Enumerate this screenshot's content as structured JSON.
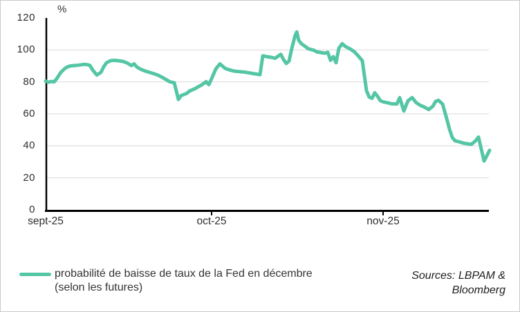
{
  "chart": {
    "line_color": "#55C6A5",
    "grid_color": "#D9D9D9",
    "axis_color": "#000000",
    "text_color": "#2E2E2E"
  },
  "chart_data": {
    "type": "line",
    "title": "",
    "xlabel": "",
    "ylabel": "%",
    "ylim": [
      0,
      120
    ],
    "yticks": [
      0,
      20,
      40,
      60,
      80,
      100,
      120
    ],
    "gridline_values": [
      20,
      40,
      60,
      80,
      100
    ],
    "grid": "horizontal-only",
    "legend_position": "bottom-left",
    "x_axis": {
      "unit": "days since start of sept-25",
      "range": [
        0,
        80.25
      ],
      "ticks": [
        {
          "label": "sept-25",
          "day": 0
        },
        {
          "label": "oct-25",
          "day": 30
        },
        {
          "label": "nov-25",
          "day": 61
        }
      ]
    },
    "series": [
      {
        "name": "probabilité de baisse de taux de la Fed en décembre (selon les futures)",
        "color": "#55C6A5",
        "points": [
          [
            0,
            80.5
          ],
          [
            0.5,
            79.8
          ],
          [
            1,
            80.3
          ],
          [
            1.5,
            80
          ],
          [
            2,
            82
          ],
          [
            2.75,
            86
          ],
          [
            3.5,
            88.5
          ],
          [
            4,
            89.5
          ],
          [
            4.5,
            90
          ],
          [
            5.5,
            90.3
          ],
          [
            6,
            90.5
          ],
          [
            7,
            91
          ],
          [
            7.5,
            90.8
          ],
          [
            8,
            90.3
          ],
          [
            8.5,
            87.5
          ],
          [
            9.25,
            84.3
          ],
          [
            10,
            86
          ],
          [
            10.5,
            89.5
          ],
          [
            11,
            92
          ],
          [
            11.75,
            93.3
          ],
          [
            12.5,
            93.5
          ],
          [
            13.25,
            93.2
          ],
          [
            14,
            92.8
          ],
          [
            14.75,
            91.8
          ],
          [
            15.5,
            90.2
          ],
          [
            16,
            91.3
          ],
          [
            16.5,
            89.3
          ],
          [
            17.25,
            87.8
          ],
          [
            18,
            86.8
          ],
          [
            18.75,
            86
          ],
          [
            19.5,
            85.2
          ],
          [
            20.25,
            84.3
          ],
          [
            21,
            83
          ],
          [
            21.75,
            81.5
          ],
          [
            22.5,
            80
          ],
          [
            23.25,
            79.5
          ],
          [
            24,
            69
          ],
          [
            24.5,
            71.5
          ],
          [
            25.5,
            72.8
          ],
          [
            26,
            74.3
          ],
          [
            27,
            75.8
          ],
          [
            27.5,
            76.8
          ],
          [
            28.25,
            78.2
          ],
          [
            29,
            80.2
          ],
          [
            29.5,
            78.3
          ],
          [
            30,
            82
          ],
          [
            30.75,
            88
          ],
          [
            31.5,
            91.3
          ],
          [
            32,
            89.8
          ],
          [
            32.5,
            88.3
          ],
          [
            33.5,
            87.3
          ],
          [
            34,
            86.8
          ],
          [
            35,
            86.4
          ],
          [
            36,
            86.1
          ],
          [
            36.75,
            85.7
          ],
          [
            37.5,
            85.2
          ],
          [
            38.25,
            84.8
          ],
          [
            38.75,
            84.5
          ],
          [
            39.25,
            96.3
          ],
          [
            40,
            95.8
          ],
          [
            40.75,
            95.4
          ],
          [
            41.5,
            94.8
          ],
          [
            42.5,
            97.3
          ],
          [
            43,
            94
          ],
          [
            43.5,
            91.5
          ],
          [
            44,
            93
          ],
          [
            44.5,
            101
          ],
          [
            45.1,
            109
          ],
          [
            45.4,
            111.3
          ],
          [
            45.75,
            106
          ],
          [
            46.25,
            103.8
          ],
          [
            47,
            102
          ],
          [
            47.5,
            100.7
          ],
          [
            48.5,
            99.8
          ],
          [
            49,
            98.8
          ],
          [
            50,
            98.2
          ],
          [
            50.5,
            98
          ],
          [
            51,
            98.5
          ],
          [
            51.5,
            93.5
          ],
          [
            52,
            95.8
          ],
          [
            52.5,
            92
          ],
          [
            53,
            101
          ],
          [
            53.6,
            103.9
          ],
          [
            54.25,
            102
          ],
          [
            55,
            100.7
          ],
          [
            55.75,
            99
          ],
          [
            56.5,
            96.3
          ],
          [
            57.25,
            93.2
          ],
          [
            58,
            74.5
          ],
          [
            58.5,
            70.5
          ],
          [
            59,
            69.7
          ],
          [
            59.5,
            73.2
          ],
          [
            60,
            71
          ],
          [
            60.5,
            68.3
          ],
          [
            61,
            67.5
          ],
          [
            62,
            66.8
          ],
          [
            62.5,
            66.3
          ],
          [
            63.5,
            66.2
          ],
          [
            64,
            70.2
          ],
          [
            64.75,
            61.8
          ],
          [
            65.5,
            68.2
          ],
          [
            66.25,
            70.2
          ],
          [
            67,
            67
          ],
          [
            67.75,
            65.3
          ],
          [
            68.5,
            64.2
          ],
          [
            69.25,
            62.7
          ],
          [
            70,
            64.8
          ],
          [
            70.5,
            67.8
          ],
          [
            71,
            68.5
          ],
          [
            71.75,
            66.2
          ],
          [
            72.5,
            57
          ],
          [
            73,
            50.5
          ],
          [
            73.5,
            45.3
          ],
          [
            74,
            43.2
          ],
          [
            75,
            42.3
          ],
          [
            75.5,
            41.7
          ],
          [
            76.5,
            41.2
          ],
          [
            77,
            41
          ],
          [
            77.75,
            43.3
          ],
          [
            78.25,
            45.5
          ],
          [
            78.75,
            38
          ],
          [
            79.25,
            30.5
          ],
          [
            79.75,
            33.8
          ],
          [
            80.25,
            37.2
          ]
        ]
      }
    ]
  },
  "legend": {
    "line1": "probabilité de baisse de taux de la Fed en décembre",
    "line2": "(selon les futures)"
  },
  "sources": {
    "line1": "Sources: LBPAM &",
    "line2": "Bloomberg"
  }
}
